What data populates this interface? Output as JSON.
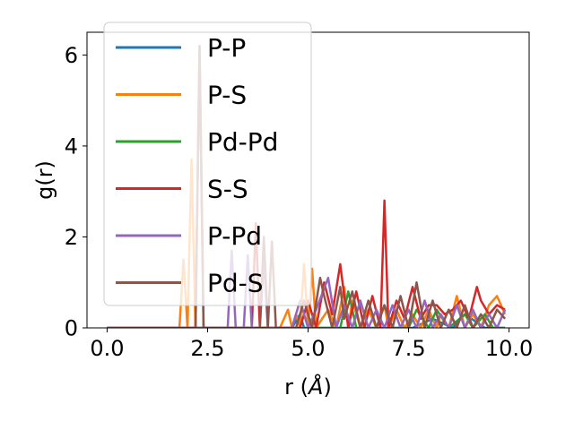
{
  "chart_data": {
    "type": "line",
    "xlabel": "r (Å)",
    "xlabel_main": "r (",
    "xlabel_unit": "Å",
    "xlabel_close": ")",
    "ylabel": "g(r)",
    "xlim": [
      -0.5,
      10.5
    ],
    "ylim": [
      0,
      6.5
    ],
    "xticks": [
      0.0,
      2.5,
      5.0,
      7.5,
      10.0
    ],
    "xtick_labels": [
      "0.0",
      "2.5",
      "5.0",
      "7.5",
      "10.0"
    ],
    "yticks": [
      0,
      2,
      4,
      6
    ],
    "ytick_labels": [
      "0",
      "2",
      "4",
      "6"
    ],
    "grid": false,
    "legend_position": "top-left",
    "series": [
      {
        "name": "P-P",
        "color": "#1f77b4",
        "x": [
          0.0,
          4.3,
          4.6,
          4.8,
          4.9,
          5.0,
          5.6,
          5.8,
          6.6,
          6.8,
          7.1,
          7.3,
          7.6,
          8.1,
          8.6,
          8.9,
          9.4,
          9.9
        ],
        "y": [
          0.0,
          0.0,
          0.0,
          0.3,
          0.0,
          0.0,
          0.0,
          0.0,
          0.0,
          0.0,
          0.0,
          0.0,
          0.0,
          0.2,
          0.0,
          0.3,
          0.0,
          0.0
        ]
      },
      {
        "name": "P-S",
        "color": "#ff7f0e",
        "x": [
          0.0,
          1.8,
          1.9,
          2.0,
          2.1,
          2.2,
          2.5,
          4.3,
          4.5,
          4.6,
          4.7,
          4.8,
          4.9,
          5.0,
          5.1,
          5.2,
          5.5,
          5.7,
          5.9,
          6.0,
          6.1,
          6.3,
          6.5,
          6.7,
          6.9,
          7.0,
          7.2,
          7.4,
          7.6,
          7.8,
          8.0,
          8.2,
          8.3,
          8.5,
          8.7,
          8.9,
          9.1,
          9.3,
          9.5,
          9.7,
          9.9
        ],
        "y": [
          0.0,
          0.0,
          1.5,
          0.0,
          3.7,
          0.0,
          0.0,
          0.0,
          0.4,
          0.0,
          0.3,
          0.0,
          1.4,
          0.0,
          1.3,
          0.0,
          0.4,
          0.0,
          0.9,
          0.0,
          0.6,
          0.0,
          0.4,
          0.0,
          0.5,
          0.0,
          0.4,
          0.0,
          0.3,
          0.0,
          0.4,
          0.0,
          0.3,
          0.0,
          0.7,
          0.0,
          0.3,
          0.0,
          0.5,
          0.7,
          0.3
        ]
      },
      {
        "name": "Pd-Pd",
        "color": "#2ca02c",
        "x": [
          0.0,
          5.8,
          6.0,
          6.2,
          6.7,
          6.9,
          7.1,
          7.5,
          7.7,
          8.0,
          8.2,
          8.5,
          8.9,
          9.1,
          9.4,
          9.6,
          9.9
        ],
        "y": [
          0.0,
          0.0,
          0.8,
          0.0,
          0.0,
          0.5,
          0.0,
          0.0,
          0.4,
          0.0,
          0.4,
          0.0,
          0.3,
          0.0,
          0.3,
          0.0,
          0.0
        ]
      },
      {
        "name": "S-S",
        "color": "#d62728",
        "x": [
          0.0,
          2.2,
          2.3,
          2.4,
          3.6,
          3.7,
          3.8,
          4.8,
          5.0,
          5.2,
          5.4,
          5.6,
          5.8,
          6.0,
          6.2,
          6.4,
          6.6,
          6.8,
          6.9,
          7.0,
          7.2,
          7.4,
          7.6,
          7.8,
          8.0,
          8.2,
          8.4,
          8.6,
          8.8,
          9.0,
          9.2,
          9.3,
          9.5,
          9.7,
          9.9
        ],
        "y": [
          0.0,
          0.0,
          6.2,
          0.0,
          0.0,
          2.3,
          0.0,
          0.0,
          0.6,
          0.0,
          1.0,
          0.3,
          1.4,
          0.0,
          0.8,
          0.0,
          0.7,
          0.0,
          2.8,
          0.0,
          0.6,
          0.2,
          0.9,
          0.2,
          0.5,
          0.5,
          0.3,
          0.4,
          0.6,
          0.2,
          0.9,
          0.6,
          0.3,
          0.5,
          0.4
        ]
      },
      {
        "name": "P-Pd",
        "color": "#9467bd",
        "x": [
          0.0,
          3.0,
          3.1,
          3.2,
          3.4,
          3.5,
          3.6,
          3.8,
          3.9,
          4.0,
          4.2,
          4.6,
          4.8,
          5.0,
          5.2,
          5.5,
          5.7,
          5.9,
          6.1,
          6.3,
          6.5,
          6.7,
          6.9,
          7.1,
          7.3,
          7.5,
          7.7,
          7.9,
          8.1,
          8.3,
          8.5,
          8.7,
          8.9,
          9.1,
          9.3,
          9.5,
          9.7,
          9.9
        ],
        "y": [
          0.0,
          0.0,
          1.7,
          0.0,
          0.0,
          1.6,
          0.0,
          0.0,
          1.5,
          0.0,
          0.0,
          0.0,
          0.6,
          0.0,
          0.4,
          1.1,
          0.0,
          0.5,
          0.0,
          0.6,
          0.0,
          0.4,
          0.0,
          0.5,
          0.0,
          0.4,
          0.0,
          0.6,
          0.0,
          0.3,
          0.0,
          0.5,
          0.0,
          0.4,
          0.0,
          0.3,
          0.0,
          0.4
        ]
      },
      {
        "name": "Pd-S",
        "color": "#8c564b",
        "x": [
          0.0,
          2.2,
          2.3,
          2.4,
          3.8,
          3.9,
          4.0,
          4.1,
          4.2,
          4.7,
          4.9,
          5.1,
          5.3,
          5.4,
          5.6,
          5.8,
          5.9,
          6.1,
          6.3,
          6.5,
          6.7,
          6.9,
          7.1,
          7.3,
          7.5,
          7.7,
          7.9,
          8.1,
          8.3,
          8.5,
          8.7,
          8.9,
          9.1,
          9.3,
          9.5,
          9.7,
          9.9
        ],
        "y": [
          0.0,
          0.0,
          6.2,
          0.0,
          0.0,
          2.0,
          0.0,
          1.9,
          0.0,
          0.0,
          0.6,
          0.0,
          1.1,
          0.7,
          0.0,
          0.9,
          0.2,
          0.8,
          0.0,
          0.6,
          0.0,
          0.5,
          0.0,
          0.7,
          0.0,
          1.0,
          0.0,
          0.6,
          0.0,
          0.4,
          0.0,
          0.5,
          0.0,
          0.3,
          0.0,
          0.4,
          0.2
        ]
      }
    ]
  }
}
